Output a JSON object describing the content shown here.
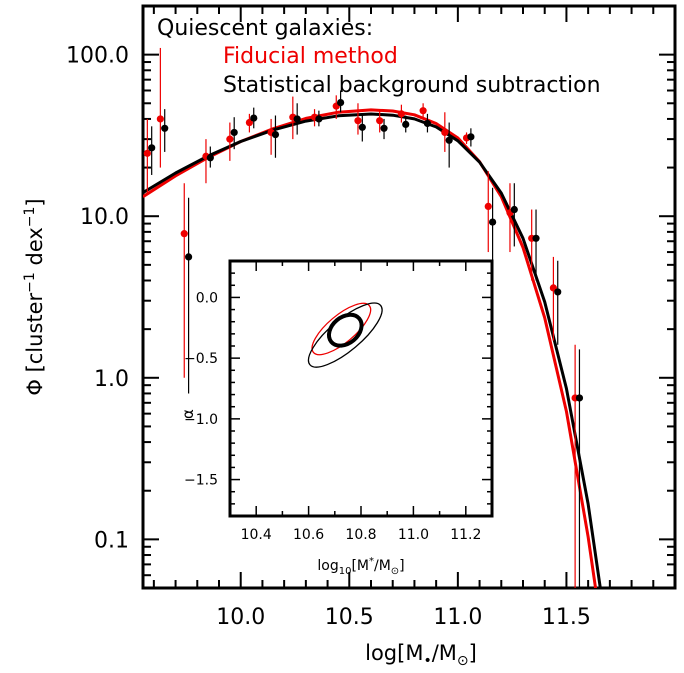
{
  "colors": {
    "fiducial": "#ee0000",
    "statistical": "#000000"
  },
  "chart_data": [
    {
      "type": "scatter",
      "xlabel": {
        "base": "log[M",
        "sub": "•",
        "mid": "/M",
        "sub2": "⊙",
        "end": "]"
      },
      "ylabel": {
        "pre": "Φ [cluster",
        "sup1": "−1",
        "mid": " dex",
        "sup2": "−1",
        "end": "]"
      },
      "xlim": [
        9.55,
        12.0
      ],
      "ylim": [
        0.05,
        200
      ],
      "yscale": "log",
      "x_ticks": [
        10.0,
        10.5,
        11.0,
        11.5
      ],
      "x_tick_labels": [
        "10.0",
        "10.5",
        "11.0",
        "11.5"
      ],
      "y_ticks": [
        0.1,
        1.0,
        10.0,
        100.0
      ],
      "y_tick_labels": [
        "0.1",
        "1.0",
        "10.0",
        "100.0"
      ],
      "legend": {
        "placement": "top-left",
        "title": "Quiescent galaxies:",
        "entries": [
          "Fiducial method",
          "Statistical background subtraction"
        ]
      },
      "series": [
        {
          "name": "Fiducial method",
          "color": "#ee0000",
          "points": [
            {
              "x": 9.57,
              "y": 24.5,
              "lo": 14,
              "hi": 40
            },
            {
              "x": 9.63,
              "y": 40,
              "lo": 20,
              "hi": 110
            },
            {
              "x": 9.74,
              "y": 7.8,
              "lo": 1.0,
              "hi": 16
            },
            {
              "x": 9.84,
              "y": 23.5,
              "lo": 16,
              "hi": 30
            },
            {
              "x": 9.95,
              "y": 30,
              "lo": 22,
              "hi": 38
            },
            {
              "x": 10.04,
              "y": 38,
              "lo": 33,
              "hi": 43
            },
            {
              "x": 10.14,
              "y": 33,
              "lo": 24,
              "hi": 40
            },
            {
              "x": 10.24,
              "y": 41,
              "lo": 30,
              "hi": 55
            },
            {
              "x": 10.34,
              "y": 41,
              "lo": 36,
              "hi": 46
            },
            {
              "x": 10.44,
              "y": 48,
              "lo": 40,
              "hi": 56
            },
            {
              "x": 10.54,
              "y": 39,
              "lo": 32,
              "hi": 50
            },
            {
              "x": 10.64,
              "y": 39,
              "lo": 33,
              "hi": 46
            },
            {
              "x": 10.74,
              "y": 43,
              "lo": 38,
              "hi": 49
            },
            {
              "x": 10.84,
              "y": 45,
              "lo": 40,
              "hi": 50
            },
            {
              "x": 10.94,
              "y": 33,
              "lo": 25,
              "hi": 44
            },
            {
              "x": 11.04,
              "y": 30.5,
              "lo": 28,
              "hi": 33
            },
            {
              "x": 11.14,
              "y": 11.5,
              "lo": 6,
              "hi": 19
            },
            {
              "x": 11.24,
              "y": 10.5,
              "lo": 6,
              "hi": 16
            },
            {
              "x": 11.34,
              "y": 7.3,
              "lo": 4,
              "hi": 11
            },
            {
              "x": 11.44,
              "y": 3.6,
              "lo": 1.7,
              "hi": 5.6
            },
            {
              "x": 11.54,
              "y": 0.75,
              "lo": 0.05,
              "hi": 1.6
            }
          ],
          "fit_curve": {
            "x": [
              9.55,
              9.7,
              9.85,
              10.0,
              10.15,
              10.3,
              10.45,
              10.6,
              10.7,
              10.8,
              10.9,
              11.0,
              11.1,
              11.2,
              11.3,
              11.4,
              11.5,
              11.6,
              11.7
            ],
            "y": [
              13.2,
              17.8,
              23.1,
              29.0,
              34.8,
              40.3,
              44.0,
              45.5,
              44.8,
              42.4,
              37.5,
              30.5,
              21.7,
              13.2,
              6.4,
              2.35,
              0.62,
              0.104,
              0.0122
            ]
          }
        },
        {
          "name": "Statistical background subtraction",
          "color": "#000000",
          "points": [
            {
              "x": 9.59,
              "y": 26.5,
              "lo": 18,
              "hi": 36
            },
            {
              "x": 9.65,
              "y": 35,
              "lo": 25,
              "hi": 46
            },
            {
              "x": 9.76,
              "y": 5.6,
              "lo": 0.8,
              "hi": 13
            },
            {
              "x": 9.86,
              "y": 23,
              "lo": 20,
              "hi": 27
            },
            {
              "x": 9.97,
              "y": 33,
              "lo": 26,
              "hi": 41
            },
            {
              "x": 10.06,
              "y": 40.5,
              "lo": 35,
              "hi": 47
            },
            {
              "x": 10.16,
              "y": 32,
              "lo": 23,
              "hi": 42
            },
            {
              "x": 10.26,
              "y": 40,
              "lo": 32,
              "hi": 50
            },
            {
              "x": 10.36,
              "y": 40,
              "lo": 36,
              "hi": 45
            },
            {
              "x": 10.46,
              "y": 50.5,
              "lo": 44,
              "hi": 60
            },
            {
              "x": 10.56,
              "y": 35.5,
              "lo": 29,
              "hi": 42
            },
            {
              "x": 10.66,
              "y": 35,
              "lo": 30,
              "hi": 40
            },
            {
              "x": 10.76,
              "y": 37,
              "lo": 33,
              "hi": 42
            },
            {
              "x": 10.86,
              "y": 37.5,
              "lo": 33,
              "hi": 43
            },
            {
              "x": 10.96,
              "y": 29.5,
              "lo": 20,
              "hi": 38
            },
            {
              "x": 11.06,
              "y": 31,
              "lo": 27,
              "hi": 35
            },
            {
              "x": 11.16,
              "y": 9.2,
              "lo": 5,
              "hi": 15
            },
            {
              "x": 11.26,
              "y": 11,
              "lo": 6.5,
              "hi": 16
            },
            {
              "x": 11.36,
              "y": 7.3,
              "lo": 4,
              "hi": 11
            },
            {
              "x": 11.46,
              "y": 3.4,
              "lo": 1.6,
              "hi": 5.3
            },
            {
              "x": 11.56,
              "y": 0.75,
              "lo": 0.05,
              "hi": 1.5
            }
          ],
          "fit_curve": {
            "x": [
              9.55,
              9.7,
              9.85,
              10.0,
              10.15,
              10.3,
              10.45,
              10.6,
              10.7,
              10.8,
              10.9,
              11.0,
              11.1,
              11.2,
              11.3,
              11.4,
              11.5,
              11.6,
              11.7
            ],
            "y": [
              14.0,
              18.5,
              23.6,
              29.0,
              34.2,
              38.8,
              41.8,
              42.9,
              42.2,
              40.0,
              35.7,
              29.3,
              21.6,
              13.9,
              7.3,
              2.95,
              0.86,
              0.166,
              0.0195
            ]
          }
        }
      ]
    },
    {
      "type": "scatter",
      "role": "inset",
      "xlabel": {
        "base": "log",
        "sub": "10",
        "mid": "[M",
        "sup": "*",
        "end": "/M",
        "sub2": "⊙",
        "close": "]"
      },
      "ylabel": "α",
      "xlim": [
        10.3,
        11.3
      ],
      "ylim": [
        -1.8,
        0.3
      ],
      "x_ticks": [
        10.4,
        10.6,
        10.8,
        11.0,
        11.2
      ],
      "x_tick_labels": [
        "10.4",
        "10.6",
        "10.8",
        "11.0",
        "11.2"
      ],
      "y_ticks": [
        0.0,
        -0.5,
        -1.0,
        -1.5
      ],
      "y_tick_labels": [
        "0.0",
        "−0.5",
        "−1.0",
        "−1.5"
      ],
      "series": [
        {
          "name": "Fiducial method",
          "color": "#ee0000",
          "contours": [
            {
              "cx": 10.725,
              "cy": -0.26,
              "rx": 0.052,
              "ry": 0.3,
              "angle_deg": 50
            }
          ]
        },
        {
          "name": "Statistical background subtraction",
          "color": "#000000",
          "contours": [
            {
              "cx": 10.74,
              "cy": -0.27,
              "rx": 0.05,
              "ry": 0.15,
              "angle_deg": 50,
              "bold": true
            },
            {
              "cx": 10.74,
              "cy": -0.31,
              "rx": 0.06,
              "ry": 0.38,
              "angle_deg": 50
            }
          ]
        }
      ]
    }
  ]
}
